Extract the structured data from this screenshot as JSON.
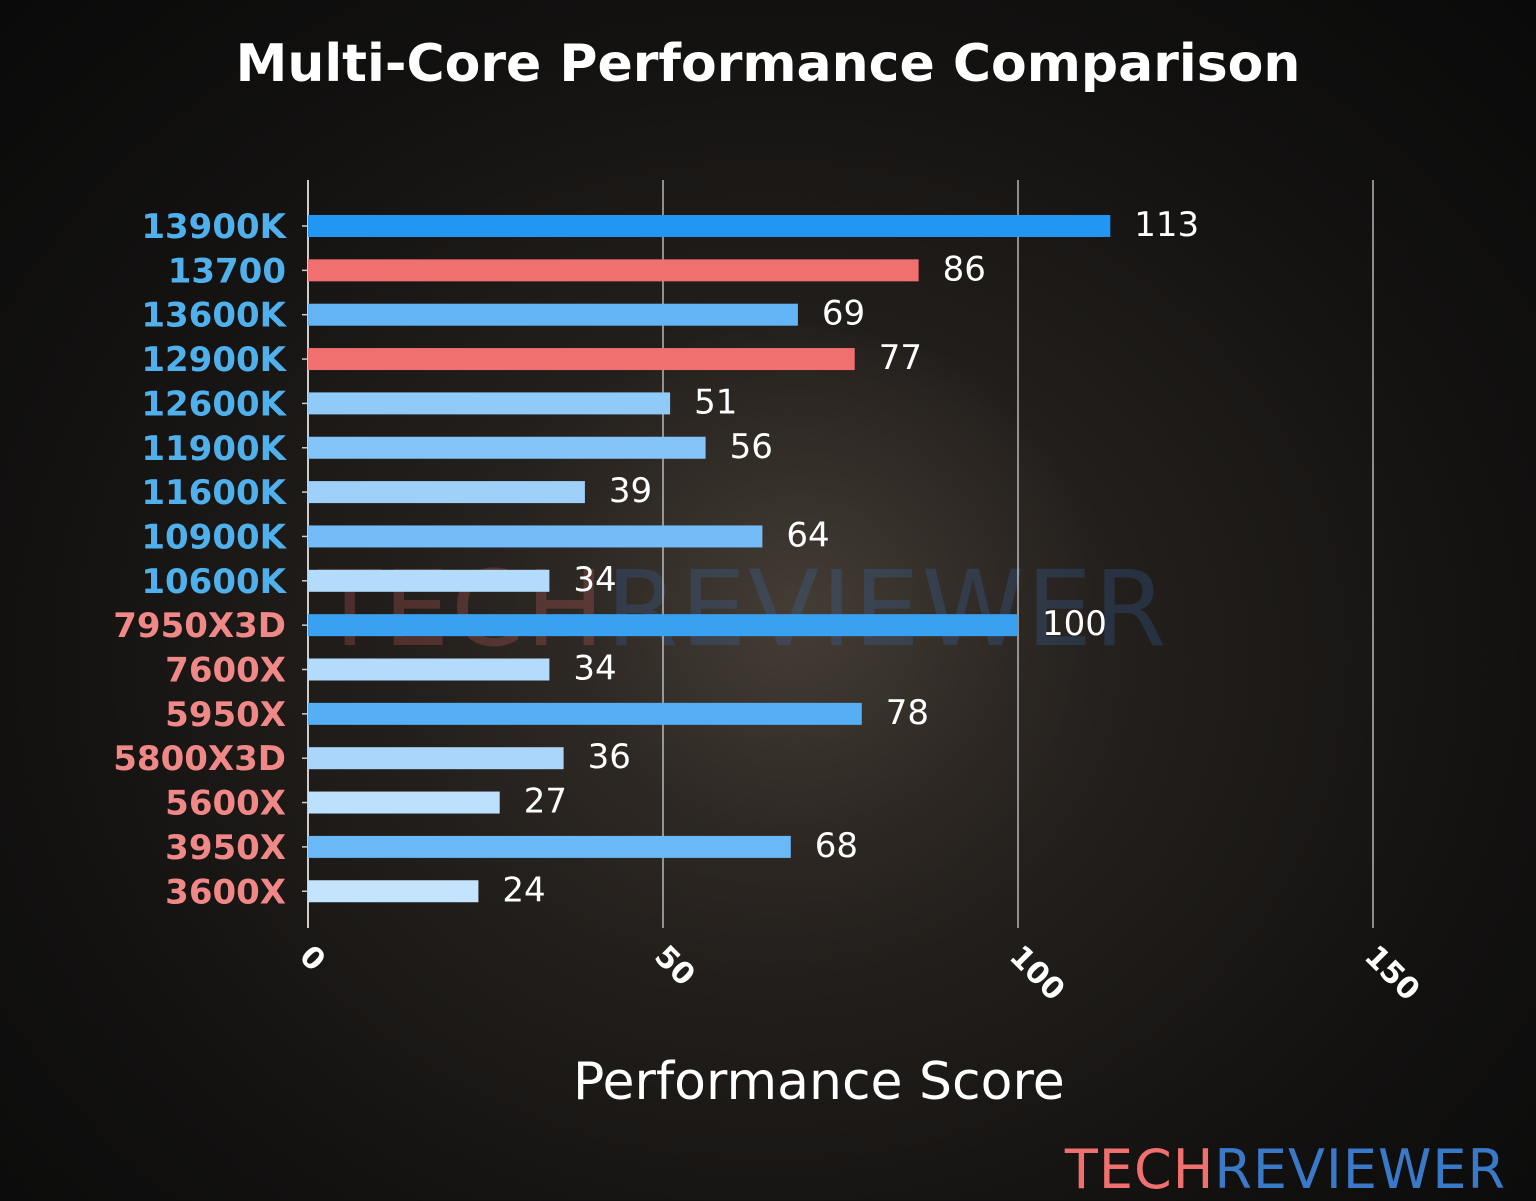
{
  "chart_data": {
    "type": "bar",
    "orientation": "horizontal",
    "title": "Multi-Core Performance Comparison",
    "xlabel": "Performance Score",
    "ylabel": "",
    "xlim": [
      0,
      150
    ],
    "xticks": [
      "0",
      "50",
      "100",
      "150"
    ],
    "grid": "vertical",
    "categories": [
      "13900K",
      "13700",
      "13600K",
      "12900K",
      "12600K",
      "11900K",
      "11600K",
      "10900K",
      "10600K",
      "7950X3D",
      "7600X",
      "5950X",
      "5800X3D",
      "5600X",
      "3950X",
      "3600X"
    ],
    "values": [
      113,
      86,
      69,
      77,
      51,
      56,
      39,
      64,
      34,
      100,
      34,
      78,
      36,
      27,
      68,
      24
    ],
    "bar_colors": [
      "#2196f3",
      "#f07070",
      "#64b5f6",
      "#f07070",
      "#90caf9",
      "#84c4f8",
      "#9fd0fa",
      "#74bcf7",
      "#b3dbfb",
      "#3aa0f0",
      "#b3dbfb",
      "#56aff5",
      "#abd6fb",
      "#bde0fc",
      "#6ab8f6",
      "#c4e4fd"
    ],
    "label_colors": [
      "#4fb0ec",
      "#4fb0ec",
      "#4fb0ec",
      "#4fb0ec",
      "#4fb0ec",
      "#4fb0ec",
      "#4fb0ec",
      "#4fb0ec",
      "#4fb0ec",
      "#f08888",
      "#f08888",
      "#f08888",
      "#f08888",
      "#f08888",
      "#f08888",
      "#f08888"
    ]
  },
  "branding": {
    "part1": "TECH",
    "part2": "REVIEWER",
    "color1": "#f07070",
    "color2": "#3a78c8"
  }
}
